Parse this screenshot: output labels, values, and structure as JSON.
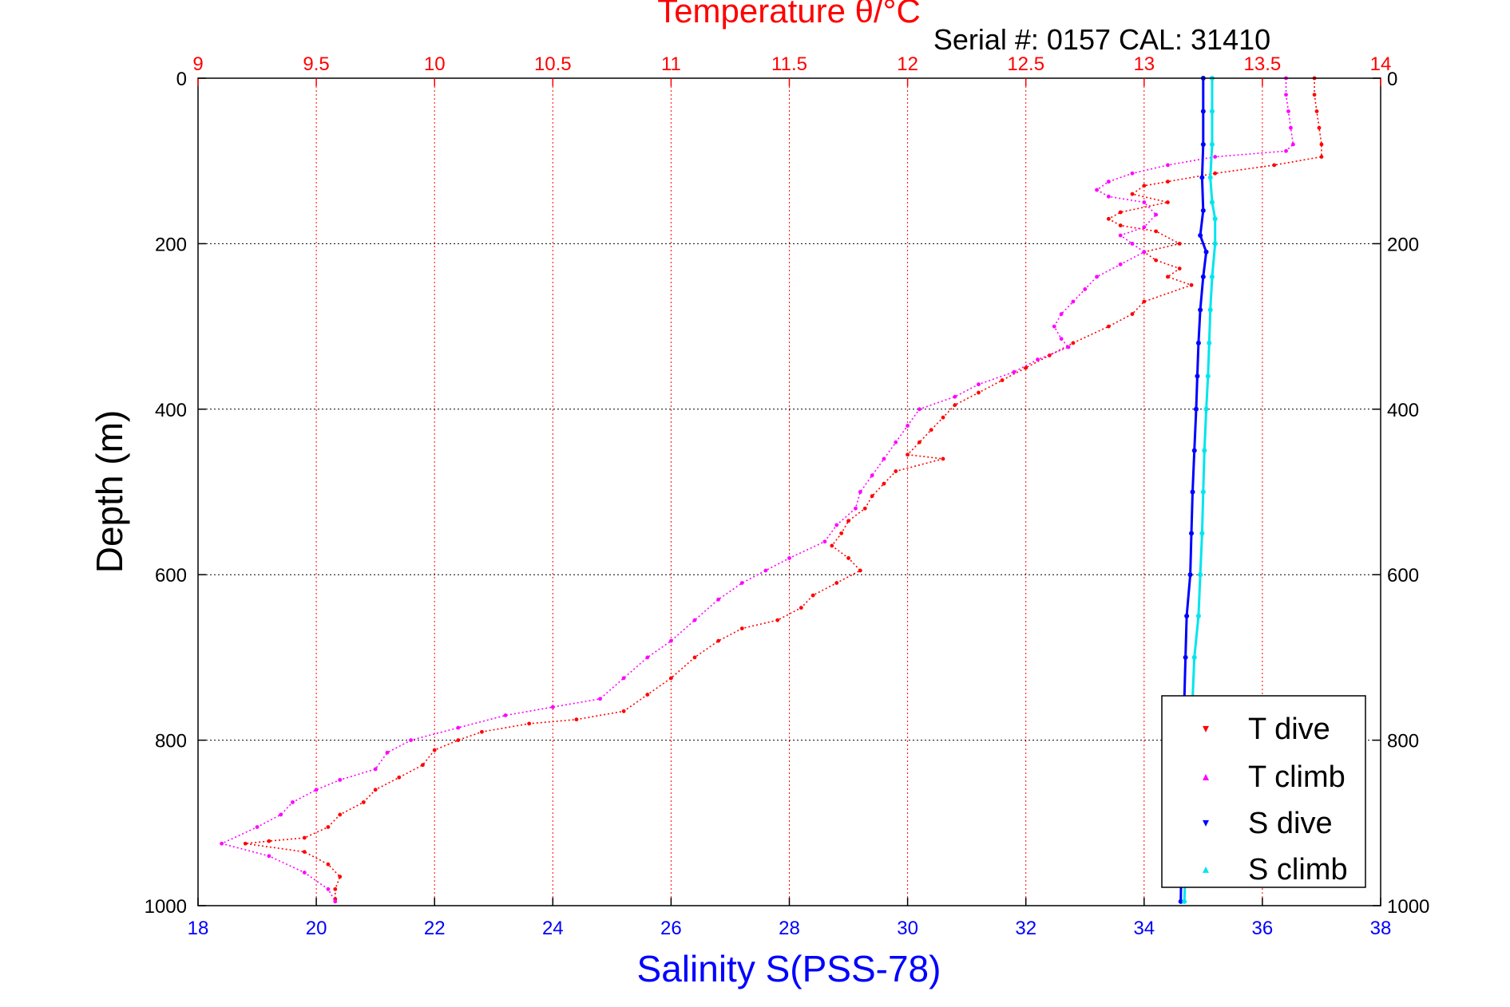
{
  "chart_data": {
    "type": "scatter",
    "title": "Temperature θ/°C",
    "subtitle": "Serial #: 0157  CAL: 31410",
    "xlabel": "Salinity S(PSS-78)",
    "ylabel": "Depth (m)",
    "temperature_axis": {
      "range": [
        9,
        14
      ],
      "ticks": [
        "9",
        "9.5",
        "10",
        "10.5",
        "11",
        "11.5",
        "12",
        "12.5",
        "13",
        "13.5",
        "14"
      ],
      "color": "#ff0000",
      "position": "top",
      "grid": true
    },
    "salinity_axis": {
      "range": [
        18,
        38
      ],
      "ticks": [
        "18",
        "20",
        "22",
        "24",
        "26",
        "28",
        "30",
        "32",
        "34",
        "36",
        "38"
      ],
      "color": "#0000ff",
      "position": "bottom"
    },
    "depth_axis": {
      "range": [
        0,
        1000
      ],
      "reversed": true,
      "ticks": [
        "0",
        "200",
        "400",
        "600",
        "800",
        "1000"
      ],
      "grid": true
    },
    "legend": {
      "position": "bottom-right",
      "entries": [
        {
          "label": "T dive",
          "color": "#ff0000",
          "marker": "▾"
        },
        {
          "label": "T climb",
          "color": "#ff00ff",
          "marker": "▴"
        },
        {
          "label": "S dive",
          "color": "#0000ff",
          "marker": "▾"
        },
        {
          "label": "S climb",
          "color": "#00e5ee",
          "marker": "▴"
        }
      ]
    },
    "series": [
      {
        "name": "T dive",
        "axis": "temperature",
        "color": "#ff0000",
        "points": [
          [
            13.72,
            0
          ],
          [
            13.72,
            20
          ],
          [
            13.73,
            40
          ],
          [
            13.74,
            60
          ],
          [
            13.75,
            80
          ],
          [
            13.75,
            95
          ],
          [
            13.55,
            105
          ],
          [
            13.3,
            115
          ],
          [
            13.1,
            125
          ],
          [
            13.0,
            130
          ],
          [
            12.95,
            140
          ],
          [
            13.1,
            150
          ],
          [
            12.9,
            162
          ],
          [
            12.85,
            170
          ],
          [
            12.9,
            178
          ],
          [
            13.05,
            185
          ],
          [
            13.15,
            200
          ],
          [
            13.0,
            210
          ],
          [
            13.05,
            220
          ],
          [
            13.15,
            230
          ],
          [
            13.1,
            240
          ],
          [
            13.2,
            250
          ],
          [
            13.0,
            270
          ],
          [
            12.95,
            285
          ],
          [
            12.85,
            300
          ],
          [
            12.7,
            320
          ],
          [
            12.6,
            335
          ],
          [
            12.5,
            350
          ],
          [
            12.4,
            365
          ],
          [
            12.3,
            380
          ],
          [
            12.2,
            395
          ],
          [
            12.15,
            410
          ],
          [
            12.1,
            425
          ],
          [
            12.05,
            440
          ],
          [
            12.0,
            455
          ],
          [
            12.15,
            460
          ],
          [
            11.95,
            475
          ],
          [
            11.9,
            490
          ],
          [
            11.85,
            505
          ],
          [
            11.82,
            520
          ],
          [
            11.75,
            535
          ],
          [
            11.72,
            550
          ],
          [
            11.68,
            565
          ],
          [
            11.75,
            580
          ],
          [
            11.8,
            595
          ],
          [
            11.7,
            610
          ],
          [
            11.6,
            625
          ],
          [
            11.55,
            640
          ],
          [
            11.45,
            655
          ],
          [
            11.3,
            665
          ],
          [
            11.2,
            680
          ],
          [
            11.1,
            700
          ],
          [
            11.0,
            725
          ],
          [
            10.9,
            745
          ],
          [
            10.8,
            765
          ],
          [
            10.6,
            775
          ],
          [
            10.4,
            780
          ],
          [
            10.2,
            790
          ],
          [
            10.1,
            800
          ],
          [
            10.0,
            812
          ],
          [
            9.95,
            830
          ],
          [
            9.85,
            845
          ],
          [
            9.75,
            860
          ],
          [
            9.7,
            875
          ],
          [
            9.6,
            890
          ],
          [
            9.55,
            905
          ],
          [
            9.45,
            918
          ],
          [
            9.3,
            922
          ],
          [
            9.2,
            925
          ],
          [
            9.45,
            935
          ],
          [
            9.55,
            950
          ],
          [
            9.6,
            965
          ],
          [
            9.58,
            980
          ],
          [
            9.58,
            992
          ]
        ]
      },
      {
        "name": "T climb",
        "axis": "temperature",
        "color": "#ff00ff",
        "points": [
          [
            13.6,
            0
          ],
          [
            13.6,
            20
          ],
          [
            13.61,
            40
          ],
          [
            13.62,
            60
          ],
          [
            13.63,
            80
          ],
          [
            13.6,
            88
          ],
          [
            13.3,
            95
          ],
          [
            13.1,
            105
          ],
          [
            12.95,
            115
          ],
          [
            12.85,
            125
          ],
          [
            12.8,
            135
          ],
          [
            12.85,
            143
          ],
          [
            13.0,
            150
          ],
          [
            13.05,
            165
          ],
          [
            13.0,
            180
          ],
          [
            12.9,
            190
          ],
          [
            12.95,
            200
          ],
          [
            13.0,
            210
          ],
          [
            12.9,
            225
          ],
          [
            12.8,
            240
          ],
          [
            12.75,
            255
          ],
          [
            12.7,
            270
          ],
          [
            12.65,
            285
          ],
          [
            12.62,
            300
          ],
          [
            12.65,
            315
          ],
          [
            12.68,
            325
          ],
          [
            12.55,
            340
          ],
          [
            12.45,
            355
          ],
          [
            12.3,
            370
          ],
          [
            12.2,
            385
          ],
          [
            12.05,
            400
          ],
          [
            12.0,
            420
          ],
          [
            11.95,
            440
          ],
          [
            11.9,
            460
          ],
          [
            11.85,
            480
          ],
          [
            11.8,
            500
          ],
          [
            11.78,
            520
          ],
          [
            11.7,
            540
          ],
          [
            11.65,
            560
          ],
          [
            11.5,
            580
          ],
          [
            11.4,
            595
          ],
          [
            11.3,
            610
          ],
          [
            11.2,
            630
          ],
          [
            11.1,
            655
          ],
          [
            11.0,
            680
          ],
          [
            10.9,
            700
          ],
          [
            10.8,
            725
          ],
          [
            10.7,
            750
          ],
          [
            10.5,
            760
          ],
          [
            10.3,
            770
          ],
          [
            10.1,
            785
          ],
          [
            9.9,
            800
          ],
          [
            9.8,
            815
          ],
          [
            9.75,
            835
          ],
          [
            9.6,
            848
          ],
          [
            9.5,
            860
          ],
          [
            9.4,
            875
          ],
          [
            9.35,
            890
          ],
          [
            9.25,
            905
          ],
          [
            9.1,
            925
          ],
          [
            9.3,
            940
          ],
          [
            9.45,
            960
          ],
          [
            9.55,
            980
          ],
          [
            9.58,
            995
          ]
        ]
      },
      {
        "name": "S dive",
        "axis": "salinity",
        "color": "#0000ff",
        "points": [
          [
            35.0,
            0
          ],
          [
            35.0,
            40
          ],
          [
            35.0,
            80
          ],
          [
            34.98,
            120
          ],
          [
            35.0,
            160
          ],
          [
            34.95,
            190
          ],
          [
            35.05,
            210
          ],
          [
            35.0,
            240
          ],
          [
            34.95,
            280
          ],
          [
            34.92,
            320
          ],
          [
            34.9,
            360
          ],
          [
            34.88,
            400
          ],
          [
            34.85,
            450
          ],
          [
            34.82,
            500
          ],
          [
            34.8,
            550
          ],
          [
            34.78,
            600
          ],
          [
            34.72,
            650
          ],
          [
            34.7,
            700
          ],
          [
            34.68,
            750
          ],
          [
            34.66,
            800
          ],
          [
            34.65,
            850
          ],
          [
            34.65,
            900
          ],
          [
            34.63,
            950
          ],
          [
            34.62,
            995
          ]
        ]
      },
      {
        "name": "S climb",
        "axis": "salinity",
        "color": "#00e5ee",
        "points": [
          [
            35.15,
            0
          ],
          [
            35.15,
            40
          ],
          [
            35.15,
            80
          ],
          [
            35.12,
            120
          ],
          [
            35.15,
            150
          ],
          [
            35.2,
            170
          ],
          [
            35.2,
            200
          ],
          [
            35.15,
            240
          ],
          [
            35.12,
            280
          ],
          [
            35.1,
            320
          ],
          [
            35.08,
            360
          ],
          [
            35.05,
            400
          ],
          [
            35.02,
            450
          ],
          [
            35.0,
            500
          ],
          [
            34.98,
            550
          ],
          [
            34.95,
            600
          ],
          [
            34.92,
            650
          ],
          [
            34.85,
            700
          ],
          [
            34.82,
            750
          ],
          [
            34.8,
            800
          ],
          [
            34.75,
            850
          ],
          [
            34.72,
            900
          ],
          [
            34.7,
            950
          ],
          [
            34.68,
            995
          ]
        ]
      }
    ]
  }
}
